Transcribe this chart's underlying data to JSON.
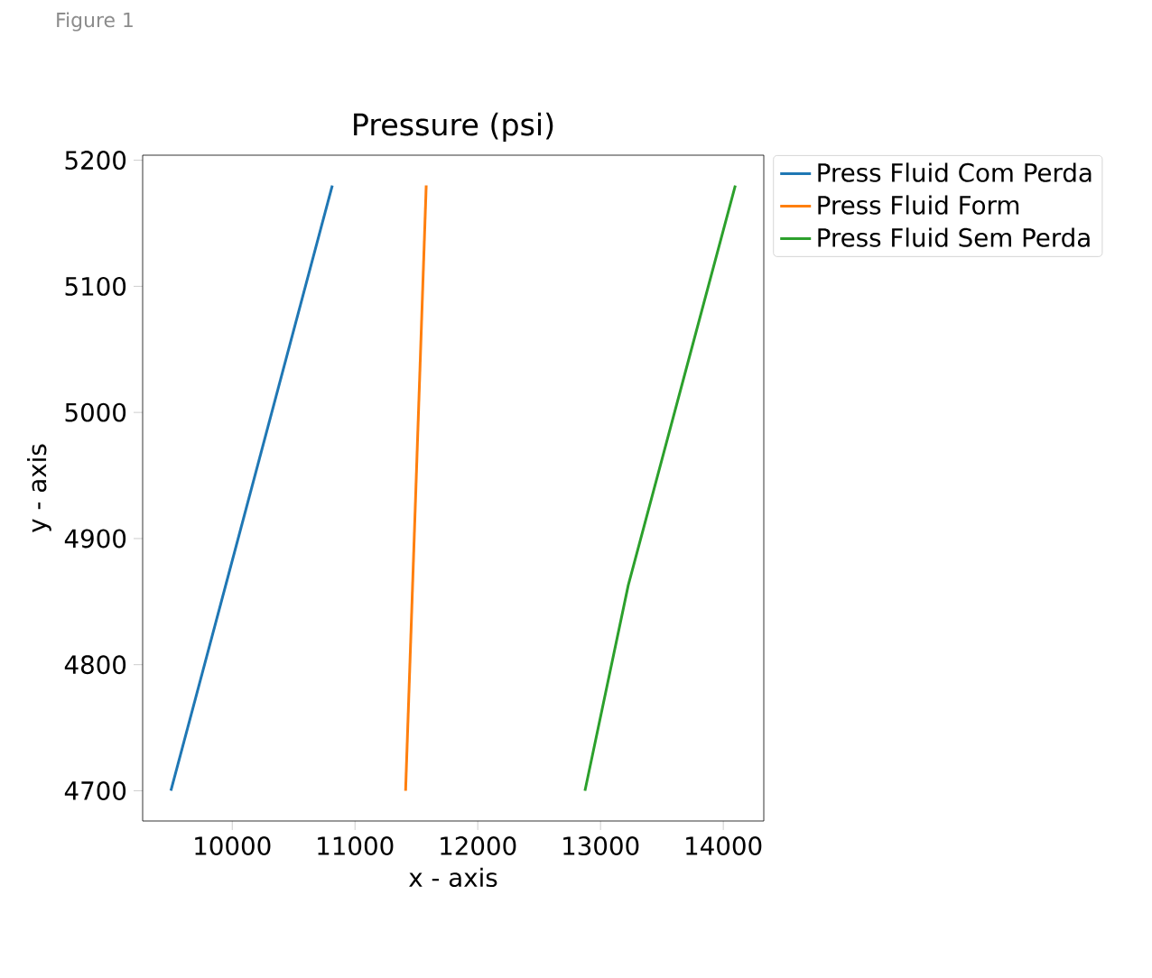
{
  "chart_data": {
    "type": "line",
    "title": "Pressure (psi)",
    "xlabel": "x - axis",
    "ylabel": "y - axis",
    "series": [
      {
        "name": "Press Fluid Com Perda",
        "color": "#1f77b4",
        "x": [
          9500,
          10815
        ],
        "values": [
          4700,
          5180
        ]
      },
      {
        "name": "Press Fluid Form",
        "color": "#ff7f0e",
        "x": [
          11412,
          11580
        ],
        "values": [
          4700,
          5180
        ]
      },
      {
        "name": "Press Fluid Sem Perda",
        "color": "#2ca02c",
        "x": [
          12873,
          13226,
          14098
        ],
        "values": [
          4700,
          4863,
          5180
        ]
      }
    ],
    "xlim": [
      9270,
      14330
    ],
    "ylim": [
      4676,
      5204
    ],
    "xticks": [
      10000,
      11000,
      12000,
      13000,
      14000
    ],
    "yticks": [
      4700,
      4800,
      4900,
      5000,
      5100,
      5200
    ],
    "legend": "top right",
    "grid": false,
    "marker": "none",
    "line_style": "solid",
    "annotations": [
      "Figure 1"
    ]
  }
}
